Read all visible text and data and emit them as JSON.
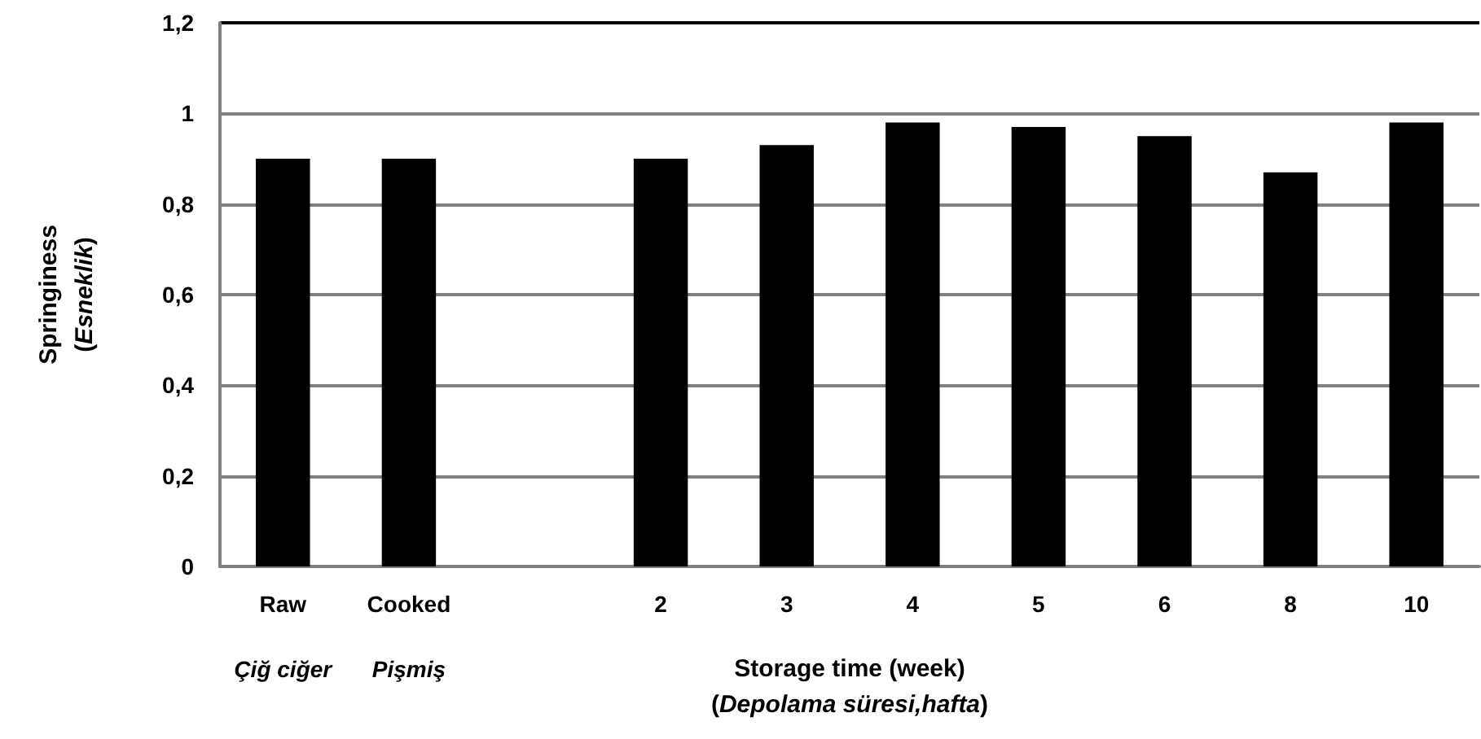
{
  "chart_data": {
    "type": "bar",
    "categories": [
      "Raw",
      "Cooked",
      null,
      "2",
      "3",
      "4",
      "5",
      "6",
      "8",
      "10"
    ],
    "values": [
      0.9,
      0.9,
      null,
      0.9,
      0.93,
      0.98,
      0.97,
      0.95,
      0.87,
      0.98
    ],
    "color": "#000000",
    "ylim": [
      0,
      1.2
    ],
    "yticks": [
      {
        "value": 0,
        "label": "0"
      },
      {
        "value": 0.2,
        "label": "0,2"
      },
      {
        "value": 0.4,
        "label": "0,4"
      },
      {
        "value": 0.6,
        "label": "0,6"
      },
      {
        "value": 0.8,
        "label": "0,8"
      },
      {
        "value": 1,
        "label": "1"
      },
      {
        "value": 1.2,
        "label": "1,2"
      }
    ],
    "grid": "y",
    "xlabel": "Storage time (week)\n(Depolama süresi,hafta)",
    "ylabel": "Springiness\n(Esneklik)",
    "annotations": [
      "Çiğ ciğer",
      "Pişmiş"
    ]
  }
}
